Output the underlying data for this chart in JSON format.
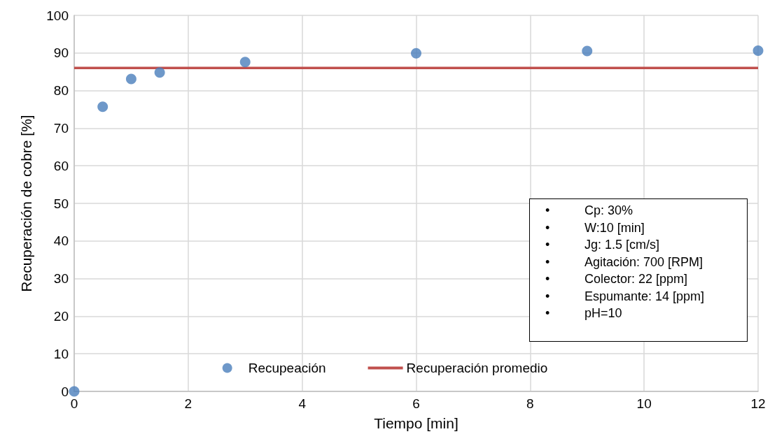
{
  "chart_data": {
    "type": "scatter",
    "xlabel": "Tiempo [min]",
    "ylabel": "Recuperación de cobre [%]",
    "xlim": [
      0,
      12
    ],
    "xticks": [
      0,
      2,
      4,
      6,
      8,
      10,
      12
    ],
    "ylim": [
      0,
      100
    ],
    "yticks": [
      0,
      10,
      20,
      30,
      40,
      50,
      60,
      70,
      80,
      90,
      100
    ],
    "grid": true,
    "legend": "bottom",
    "marker": "circle",
    "series": [
      {
        "name": "Recupeación",
        "color": "#4a7ebb",
        "x": [
          0,
          0.5,
          1,
          1.5,
          3,
          6,
          9,
          12
        ],
        "values": [
          0,
          75.7,
          83.1,
          84.8,
          87.6,
          89.9,
          90.5,
          90.6
        ]
      },
      {
        "name": "Recuperación promedio",
        "type": "line",
        "color": "#c0504d",
        "x": [
          0,
          12
        ],
        "values": [
          86,
          86
        ],
        "line_style": "solid",
        "marker": "none"
      }
    ],
    "annotations": [
      "•\tCp: 30%",
      "•\tW:10 [min]",
      "•\tJg: 1.5 [cm/s]",
      "•\tAgitación: 700 [RPM]",
      "•\tColector: 22 [ppm]",
      "•\tEspumante: 14 [ppm]",
      "•\tpH=10"
    ]
  }
}
